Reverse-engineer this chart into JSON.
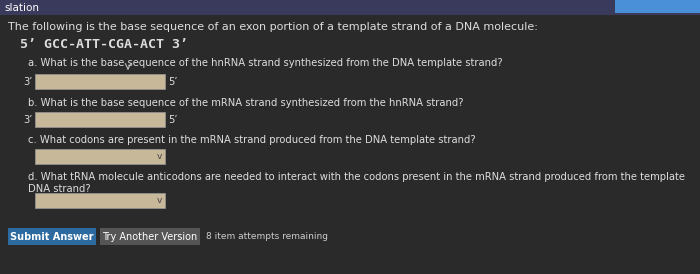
{
  "bg_color": "#2a2a2a",
  "top_bar_color": "#3a3a5c",
  "header_text": "slation",
  "header_text_color": "#ffffff",
  "title_text": "The following is the base sequence of an exon portion of a template strand of a DNA molecule:",
  "dna_sequence": "5’ GCC-ATT-CGA-ACT 3’",
  "question_a": "a. What is the base sequence of the hnRNA strand synthesized from the DNA template strand?",
  "question_b": "b. What is the base sequence of the mRNA strand synthesized from the hnRNA strand?",
  "question_c": "c. What codons are present in the mRNA strand produced from the DNA template strand?",
  "question_d": "d. What tRNA molecule anticodons are needed to interact with the codons present in the mRNA strand produced from the template DNA strand?",
  "label_3prime": "3’",
  "label_5prime": "5’",
  "input_box_color": "#c8b89a",
  "dropdown_box_color": "#c8b89a",
  "submit_btn_color": "#2d6a9f",
  "submit_btn_text": "Submit Answer",
  "submit_btn_text_color": "#ffffff",
  "try_btn_color": "#555555",
  "try_btn_text": "Try Another Version",
  "try_btn_text_color": "#ffffff",
  "attempts_text": "8 item attempts remaining",
  "text_color": "#dddddd",
  "text_color_dark": "#cccccc",
  "top_right_bar_color": "#4a90d9",
  "font_size_title": 8.0,
  "font_size_dna": 9.5,
  "font_size_question": 7.2,
  "font_size_label": 7.2,
  "font_size_btn": 7.0,
  "font_size_attempts": 6.5
}
